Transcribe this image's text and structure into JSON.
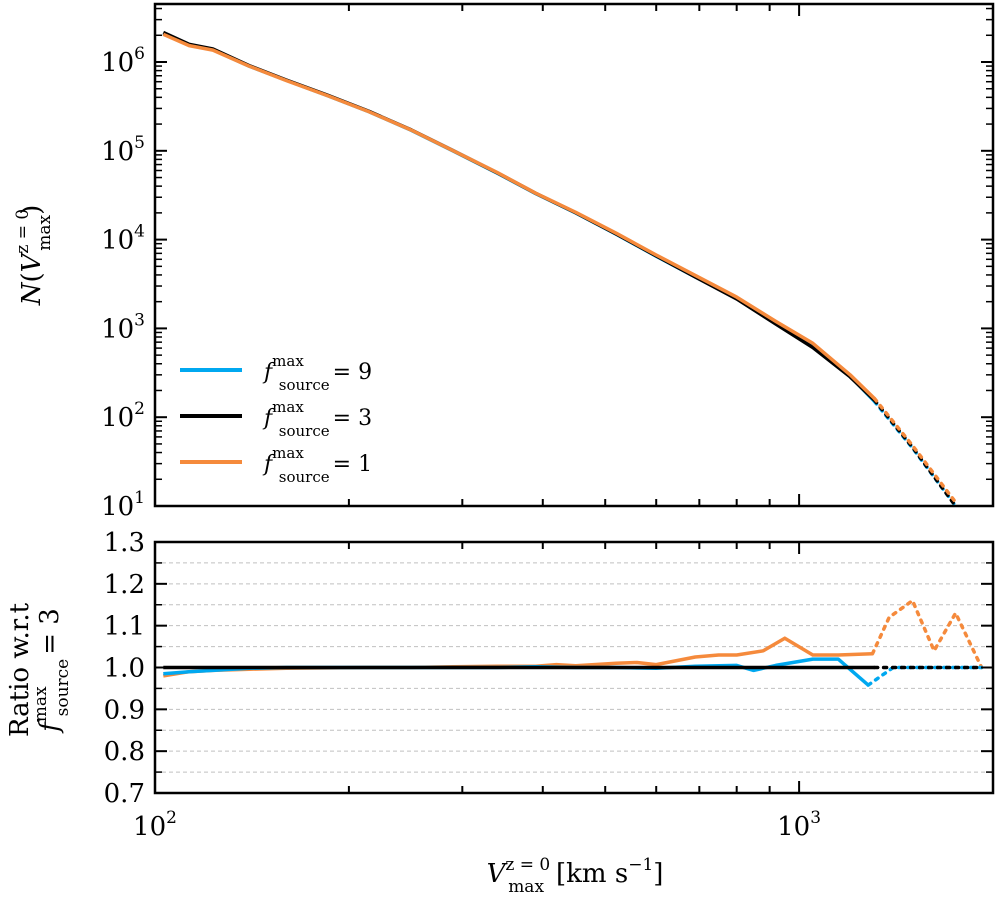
{
  "chart_data": [
    {
      "type": "line",
      "panel": "top",
      "ylabel": {
        "lead": "N",
        "var": "V",
        "sup": "z = 0",
        "sub": "max"
      },
      "y_scale": "log",
      "x_scale": "log",
      "ylim": [
        10,
        4500000
      ],
      "xlim": [
        100,
        2000
      ],
      "ytick_values": [
        10,
        100,
        1000,
        10000,
        100000,
        1000000
      ],
      "ytick_labels": [
        {
          "base": "10",
          "exp": "1"
        },
        {
          "base": "10",
          "exp": "2"
        },
        {
          "base": "10",
          "exp": "3"
        },
        {
          "base": "10",
          "exp": "4"
        },
        {
          "base": "10",
          "exp": "5"
        },
        {
          "base": "10",
          "exp": "6"
        }
      ],
      "legend_placement": "lower-left",
      "series": [
        {
          "name": {
            "base": "f",
            "sup": "max",
            "sub": "source",
            "eq": "= 9"
          },
          "color": "#00a8f0",
          "solid": {
            "x": [
              103,
              113,
              123,
              140,
              160,
              185,
              215,
              250,
              290,
              340,
              390,
              450,
              520,
              600,
              690,
              800,
              920,
              1050,
              1200,
              1310
            ],
            "y": [
              2100000,
              1550000,
              1380000,
              900000,
              620000,
              420000,
              275000,
              170000,
              100000,
              56000,
              33000,
              20000,
              11500,
              6500,
              3800,
              2200,
              1150,
              620,
              290,
              150
            ]
          },
          "dotted": {
            "x": [
              1310,
              1500,
              1750
            ],
            "y": [
              150,
              45,
              10
            ]
          }
        },
        {
          "name": {
            "base": "f",
            "sup": "max",
            "sub": "source",
            "eq": "= 3"
          },
          "color": "#000000",
          "solid": {
            "x": [
              103,
              113,
              123,
              140,
              160,
              185,
              215,
              250,
              290,
              340,
              390,
              450,
              520,
              600,
              690,
              800,
              920,
              1050,
              1200,
              1310
            ],
            "y": [
              2150000,
              1580000,
              1400000,
              910000,
              625000,
              425000,
              278000,
              172000,
              101000,
              56500,
              33200,
              20100,
              11600,
              6550,
              3800,
              2150,
              1120,
              610,
              285,
              155
            ]
          },
          "dotted": {
            "x": [
              1310,
              1500,
              1750
            ],
            "y": [
              155,
              46,
              10
            ]
          }
        },
        {
          "name": {
            "base": "f",
            "sup": "max",
            "sub": "source",
            "eq": "= 1"
          },
          "color": "#f58a3c",
          "solid": {
            "x": [
              103,
              113,
              123,
              140,
              160,
              185,
              215,
              250,
              290,
              340,
              390,
              450,
              520,
              600,
              690,
              800,
              920,
              1050,
              1200,
              1310
            ],
            "y": [
              2050000,
              1530000,
              1360000,
              900000,
              618000,
              420000,
              275000,
              171000,
              100500,
              56800,
              33300,
              20300,
              11800,
              6700,
              3950,
              2250,
              1200,
              680,
              300,
              162
            ]
          },
          "dotted": {
            "x": [
              1310,
              1500,
              1750
            ],
            "y": [
              162,
              48,
              11
            ]
          }
        }
      ]
    },
    {
      "type": "line",
      "panel": "bottom",
      "ylabel": {
        "line1": "Ratio w.r.t",
        "base": "f",
        "sup": "max",
        "sub": "source",
        "eq": "= 3"
      },
      "xlabel": {
        "var": "V",
        "sup": "z = 0",
        "sub": "max",
        "unit": "[km s",
        "unit_sup": "−1",
        "unit_end": "]"
      },
      "x_scale": "log",
      "xlim": [
        100,
        2000
      ],
      "ylim": [
        0.7,
        1.3
      ],
      "ytick_labels": [
        "0.7",
        "0.8",
        "0.9",
        "1.0",
        "1.1",
        "1.2",
        "1.3"
      ],
      "xtick_labels": [
        {
          "base": "10",
          "exp": "2",
          "value": 100
        },
        {
          "base": "10",
          "exp": "3",
          "value": 1000
        }
      ],
      "grid": "horizontal dashed",
      "series": [
        {
          "ref": 0,
          "color": "#00a8f0",
          "solid": {
            "x": [
              103,
              113,
              123,
              140,
              160,
              185,
              215,
              250,
              290,
              340,
              390,
              450,
              520,
              600,
              690,
              800,
              850,
              920,
              1050,
              1150,
              1280
            ],
            "y": [
              0.985,
              0.99,
              0.993,
              0.998,
              1.0,
              1.0,
              1.0,
              1.0,
              1.0,
              1.0,
              1.002,
              1.0,
              1.0,
              0.998,
              1.003,
              1.005,
              0.993,
              1.005,
              1.02,
              1.02,
              0.958
            ]
          },
          "dotted": {
            "x": [
              1280,
              1400,
              1550,
              1750,
              1920
            ],
            "y": [
              0.958,
              1.0,
              1.0,
              1.0,
              1.0
            ]
          }
        },
        {
          "ref": 1,
          "color": "#000000",
          "solid": {
            "x": [
              103,
              1310
            ],
            "y": [
              1.0,
              1.0
            ]
          },
          "dotted": {
            "x": [
              1310,
              1920
            ],
            "y": [
              1.0,
              1.0
            ]
          }
        },
        {
          "ref": 2,
          "color": "#f58a3c",
          "solid": {
            "x": [
              103,
              113,
              123,
              140,
              160,
              185,
              215,
              250,
              290,
              340,
              390,
              420,
              450,
              520,
              560,
              600,
              690,
              750,
              800,
              880,
              950,
              1050,
              1150,
              1300
            ],
            "y": [
              0.98,
              0.99,
              0.993,
              0.996,
              0.998,
              0.999,
              1.0,
              1.0,
              1.002,
              1.003,
              1.003,
              1.007,
              1.004,
              1.01,
              1.012,
              1.007,
              1.025,
              1.03,
              1.03,
              1.04,
              1.07,
              1.03,
              1.03,
              1.033
            ]
          },
          "dotted": {
            "x": [
              1300,
              1380,
              1500,
              1620,
              1750,
              1920
            ],
            "y": [
              1.033,
              1.12,
              1.16,
              1.04,
              1.13,
              1.0
            ]
          }
        }
      ]
    }
  ]
}
